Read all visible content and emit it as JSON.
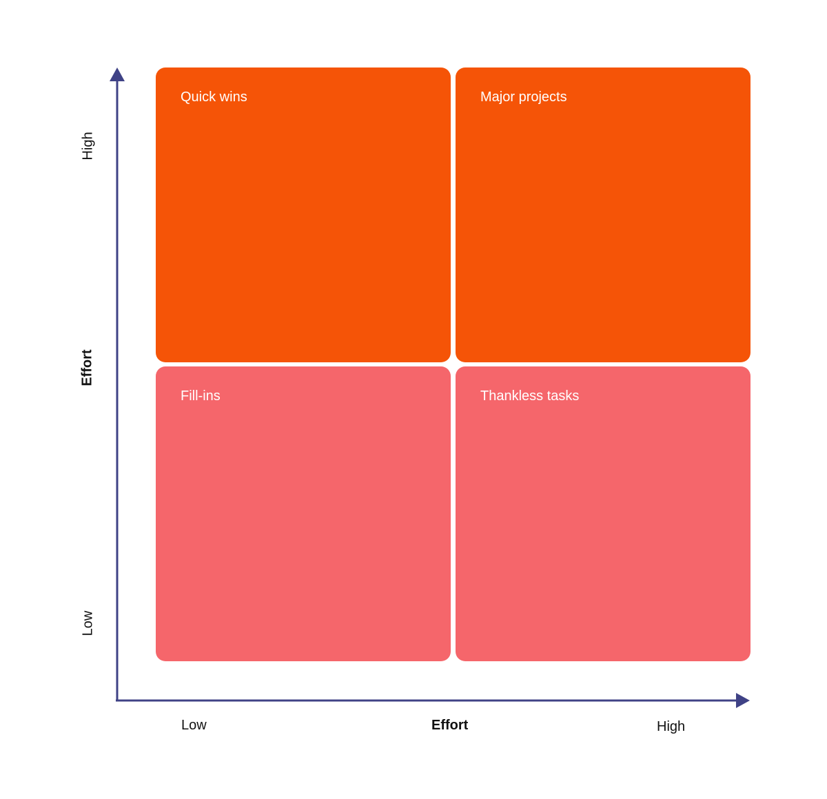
{
  "colors": {
    "top_quadrants": "#f55407",
    "bottom_quadrants": "#f5666b",
    "axis": "#3f4286",
    "quadrant_text": "#ffffff",
    "axis_text": "#111111"
  },
  "quadrants": {
    "top_left": {
      "label": "Quick wins"
    },
    "top_right": {
      "label": "Major projects"
    },
    "bottom_left": {
      "label": "Fill-ins"
    },
    "bottom_right": {
      "label": "Thankless tasks"
    }
  },
  "x_axis": {
    "low": "Low",
    "title": "Effort",
    "high": "High"
  },
  "y_axis": {
    "high": "High",
    "title": "Effort",
    "low": "Low"
  }
}
